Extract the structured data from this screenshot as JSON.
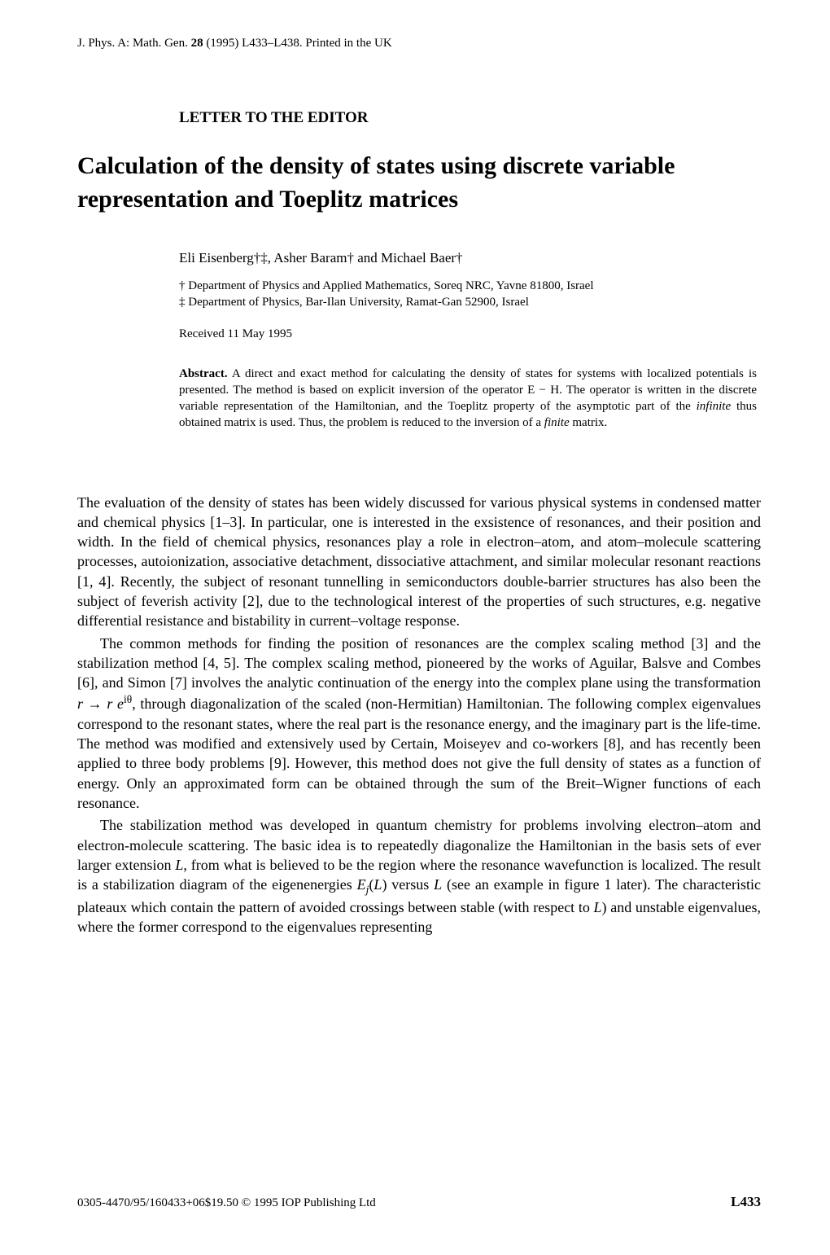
{
  "header": {
    "journal": "J. Phys. A: Math. Gen. ",
    "volume": "28",
    "year_pages": " (1995) L433–L438. Printed in the UK"
  },
  "letter_heading": "LETTER TO THE EDITOR",
  "title": "Calculation of the density of states using discrete variable representation and Toeplitz matrices",
  "authors": "Eli Eisenberg†‡, Asher Baram† and Michael Baer†",
  "affiliations": {
    "line1": "† Department of Physics and Applied Mathematics, Soreq NRC, Yavne 81800, Israel",
    "line2": "‡ Department of Physics, Bar-Ilan University, Ramat-Gan 52900, Israel"
  },
  "received": "Received 11 May 1995",
  "abstract": {
    "label": "Abstract.",
    "text": " A direct and exact method for calculating the density of states for systems with localized potentials is presented. The method is based on explicit inversion of the operator E − H. The operator is written in the discrete variable representation of the Hamiltonian, and the Toeplitz property of the asymptotic part of the ",
    "italic1": "infinite",
    "text2": " thus obtained matrix is used. Thus, the problem is reduced to the inversion of a ",
    "italic2": "finite",
    "text3": " matrix."
  },
  "body": {
    "para1": "The evaluation of the density of states has been widely discussed for various physical systems in condensed matter and chemical physics [1–3]. In particular, one is interested in the exsistence of resonances, and their position and width. In the field of chemical physics, resonances play a role in electron–atom, and atom–molecule scattering processes, autoionization, associative detachment, dissociative attachment, and similar molecular resonant reactions [1, 4]. Recently, the subject of resonant tunnelling in semiconductors double-barrier structures has also been the subject of feverish activity [2], due to the technological interest of the properties of such structures, e.g. negative differential resistance and bistability in current–voltage response.",
    "para2_a": "The common methods for finding the position of resonances are the complex scaling method [3] and the stabilization method [4, 5]. The complex scaling method, pioneered by the works of Aguilar, Balsve and Combes [6], and Simon [7] involves the analytic continuation of the energy into the complex plane using the transformation ",
    "para2_math": "r → r e",
    "para2_exp": "iθ",
    "para2_b": ", through diagonalization of the scaled (non-Hermitian) Hamiltonian. The following complex eigenvalues correspond to the resonant states, where the real part is the resonance energy, and the imaginary part is the life-time. The method was modified and extensively used by Certain, Moiseyev and co-workers [8], and has recently been applied to three body problems [9]. However, this method does not give the full density of states as a function of energy. Only an approximated form can be obtained through the sum of the Breit–Wigner functions of each resonance.",
    "para3_a": "The stabilization method was developed in quantum chemistry for problems involving electron–atom and electron-molecule scattering. The basic idea is to repeatedly diagonalize the Hamiltonian in the basis sets of ever larger extension ",
    "para3_L1": "L",
    "para3_b": ", from what is believed to be the region where the resonance wavefunction is localized. The result is a stabilization diagram of the eigenenergies ",
    "para3_Ej": "E",
    "para3_j": "j",
    "para3_c": "(",
    "para3_L2": "L",
    "para3_d": ") versus ",
    "para3_L3": "L",
    "para3_e": " (see an example in figure 1 later). The characteristic plateaux which contain the pattern of avoided crossings between stable (with respect to ",
    "para3_L4": "L",
    "para3_f": ") and unstable eigenvalues, where the former correspond to the eigenvalues representing"
  },
  "footer": {
    "isbn": "0305-4470/95/160433+06$19.50   © 1995 IOP Publishing Ltd",
    "page": "L433"
  }
}
